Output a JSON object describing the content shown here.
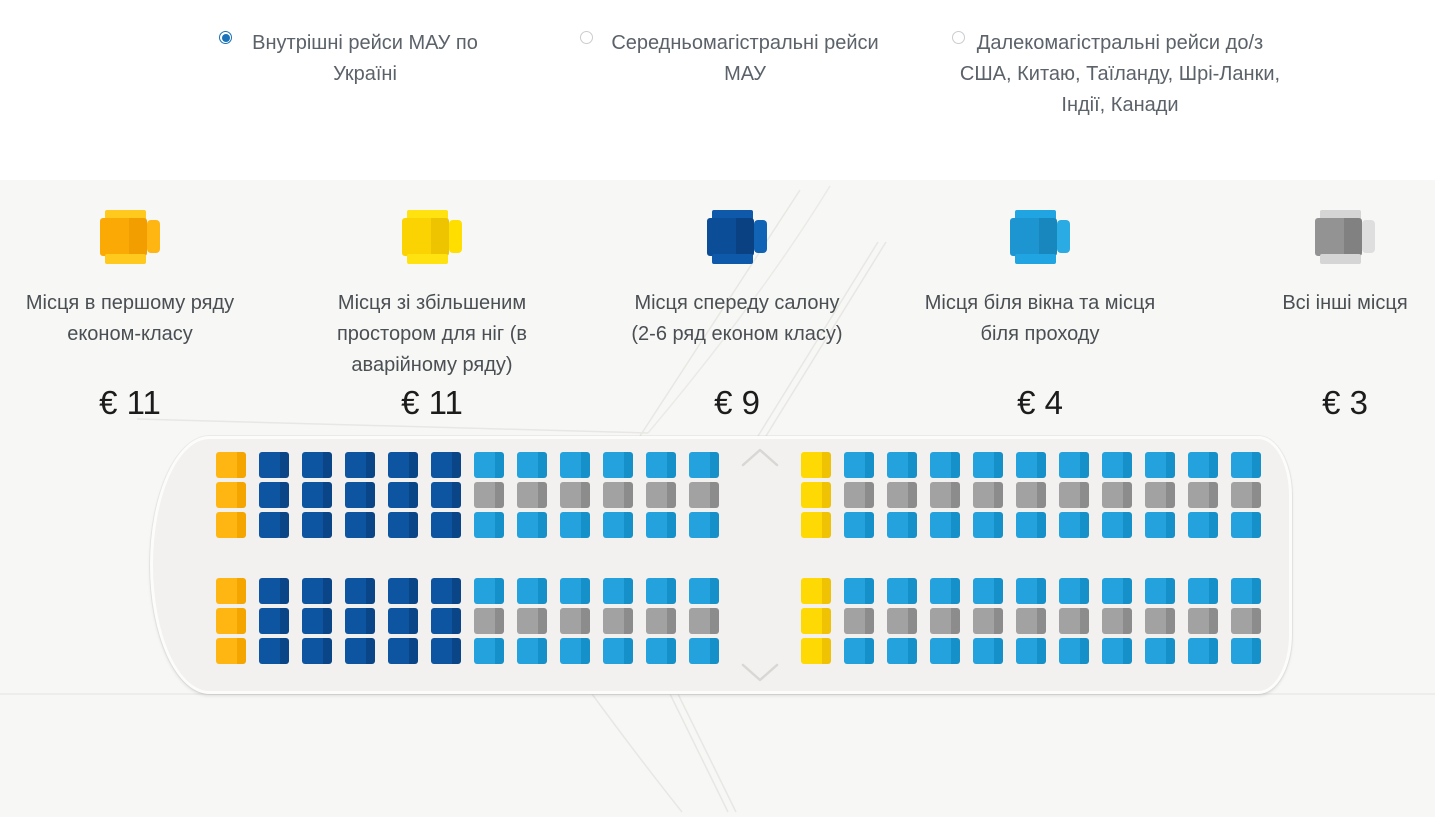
{
  "radio_group": {
    "selected_color": "#1a72b8",
    "options": [
      {
        "id": "domestic",
        "selected": true,
        "lines": [
          "Внутрішні рейси МАУ по",
          "Україні"
        ]
      },
      {
        "id": "medium-haul",
        "selected": false,
        "lines": [
          "Середньомагістральні рейси",
          "МАУ"
        ]
      },
      {
        "id": "long-haul",
        "selected": false,
        "lines": [
          "Далекомагістральні рейси до/з",
          "США, Китаю, Таїланду, Шрі-Ланки,",
          "Індії, Канади"
        ]
      }
    ]
  },
  "legend": {
    "items": [
      {
        "id": "first-row-economy",
        "lines": [
          "Місця в першому ряду",
          "економ-класу"
        ],
        "price": "€ 11",
        "icon": {
          "arm": "#FFC91E",
          "a": "#FBA905",
          "b": "#F29D00",
          "back": "#FFB612"
        }
      },
      {
        "id": "extra-legroom",
        "lines": [
          "Місця зі збільшеним",
          "простором для ніг (в",
          "аварійному ряду)"
        ],
        "price": "€ 11",
        "icon": {
          "arm": "#FFE210",
          "a": "#FBD303",
          "b": "#EEC400",
          "back": "#FFDE00"
        }
      },
      {
        "id": "front-cabin",
        "lines": [
          "Місця спереду салону",
          "(2-6 ряд економ класу)"
        ],
        "price": "€ 9",
        "icon": {
          "arm": "#0E59A9",
          "a": "#0C4D97",
          "b": "#0A4183",
          "back": "#1063B5"
        }
      },
      {
        "id": "window-aisle",
        "lines": [
          "Місця біля вікна та місця",
          "біля проходу"
        ],
        "price": "€ 4",
        "icon": {
          "arm": "#21A5E2",
          "a": "#1C95D1",
          "b": "#1787BE",
          "back": "#2BABE4"
        }
      },
      {
        "id": "all-other",
        "lines": [
          "Всі інші місця"
        ],
        "price": "€ 3",
        "icon": {
          "arm": "#D5D5D5",
          "a": "#939393",
          "b": "#818181",
          "back": "#DEDEDE"
        }
      }
    ]
  },
  "seat_map": {
    "colors": {
      "gold": {
        "a": "#FFB612",
        "b": "#F4A500"
      },
      "yellow": {
        "a": "#FFD903",
        "b": "#EFC303"
      },
      "dark": {
        "a": "#0E55A1",
        "b": "#0A4587"
      },
      "light": {
        "a": "#23A2DD",
        "b": "#1690C8"
      },
      "gray": {
        "a": "#A2A2A2",
        "b": "#8C8C8C"
      }
    },
    "patterns": {
      "first": [
        "gold",
        "gold",
        "gold"
      ],
      "front": [
        "dark",
        "dark",
        "dark"
      ],
      "std": [
        "light",
        "gray",
        "light"
      ],
      "exitrow": [
        "yellow",
        "yellow",
        "yellow"
      ]
    },
    "columns": [
      "first",
      "front",
      "front",
      "front",
      "front",
      "front",
      "std",
      "std",
      "std",
      "std",
      "std",
      "std",
      "exit",
      "exitrow",
      "std",
      "std",
      "std",
      "std",
      "std",
      "std",
      "std",
      "std",
      "std",
      "std"
    ]
  }
}
